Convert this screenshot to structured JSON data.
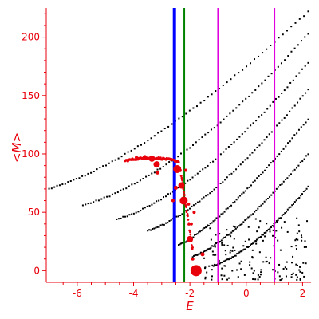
{
  "chart_data": {
    "type": "scatter",
    "xlabel": "E",
    "ylabel": "<M>",
    "xlim": [
      -7.1,
      2.3
    ],
    "ylim": [
      -10,
      225
    ],
    "xticks": [
      -6,
      -4,
      -2,
      0,
      2
    ],
    "xtick_labels": [
      "-6",
      "-4",
      "-2",
      "0",
      "2"
    ],
    "yticks": [
      0,
      50,
      100,
      150,
      200
    ],
    "ytick_labels": [
      "0",
      "50",
      "100",
      "150",
      "200"
    ],
    "vertical_lines": [
      {
        "x": -2.55,
        "color": "#0000ff"
      },
      {
        "x": -2.2,
        "color": "#008000"
      },
      {
        "x": -1.0,
        "color": "#e000e0"
      },
      {
        "x": 1.0,
        "color": "#e000e0"
      }
    ],
    "black_curves": [
      {
        "x0": -7.0,
        "y0": 70,
        "x1": -3.5,
        "y1": 95,
        "x2": 2.2,
        "y2": 222
      },
      {
        "x0": -5.8,
        "y0": 56,
        "x1": -2.3,
        "y1": 80,
        "x2": 2.2,
        "y2": 203
      },
      {
        "x0": -4.6,
        "y0": 44,
        "x1": -1.8,
        "y1": 64,
        "x2": 2.2,
        "y2": 178
      },
      {
        "x0": -3.5,
        "y0": 34,
        "x1": -1.4,
        "y1": 50,
        "x2": 2.2,
        "y2": 155
      },
      {
        "x0": -2.4,
        "y0": 22,
        "x1": -0.9,
        "y1": 38,
        "x2": 2.2,
        "y2": 130
      },
      {
        "x0": -1.9,
        "y0": 12,
        "x1": -0.4,
        "y1": 26,
        "x2": 2.2,
        "y2": 100
      },
      {
        "x0": -1.2,
        "y0": 4,
        "x1": 0.2,
        "y1": 14,
        "x2": 2.2,
        "y2": 72
      }
    ],
    "black_scatter_region": {
      "xmin": -1.5,
      "xmax": 2.2,
      "ymin": -8,
      "ymax": 45,
      "count": 160
    },
    "red_points": [
      {
        "x": -1.78,
        "y": 0,
        "r": 7
      },
      {
        "x": -2.0,
        "y": 27,
        "r": 4
      },
      {
        "x": -2.22,
        "y": 60,
        "r": 5
      },
      {
        "x": -2.3,
        "y": 73,
        "r": 4
      },
      {
        "x": -2.45,
        "y": 87,
        "r": 5
      },
      {
        "x": -3.18,
        "y": 91,
        "r": 4
      },
      {
        "x": -3.35,
        "y": 96,
        "r": 4
      },
      {
        "x": -3.6,
        "y": 97,
        "r": 3
      },
      {
        "x": -3.9,
        "y": 97,
        "r": 2
      },
      {
        "x": -3.15,
        "y": 84,
        "r": 2.5
      },
      {
        "x": -2.5,
        "y": 71,
        "r": 2.5
      },
      {
        "x": -2.05,
        "y": 57,
        "r": 2
      },
      {
        "x": -1.9,
        "y": 10,
        "r": 2
      },
      {
        "x": -1.55,
        "y": 14,
        "r": 2.5
      },
      {
        "x": -1.85,
        "y": 50,
        "r": 2
      },
      {
        "x": -1.95,
        "y": 40,
        "r": 2
      },
      {
        "x": -2.6,
        "y": 60,
        "r": 2
      },
      {
        "x": -2.15,
        "y": 86,
        "r": 2
      }
    ]
  }
}
